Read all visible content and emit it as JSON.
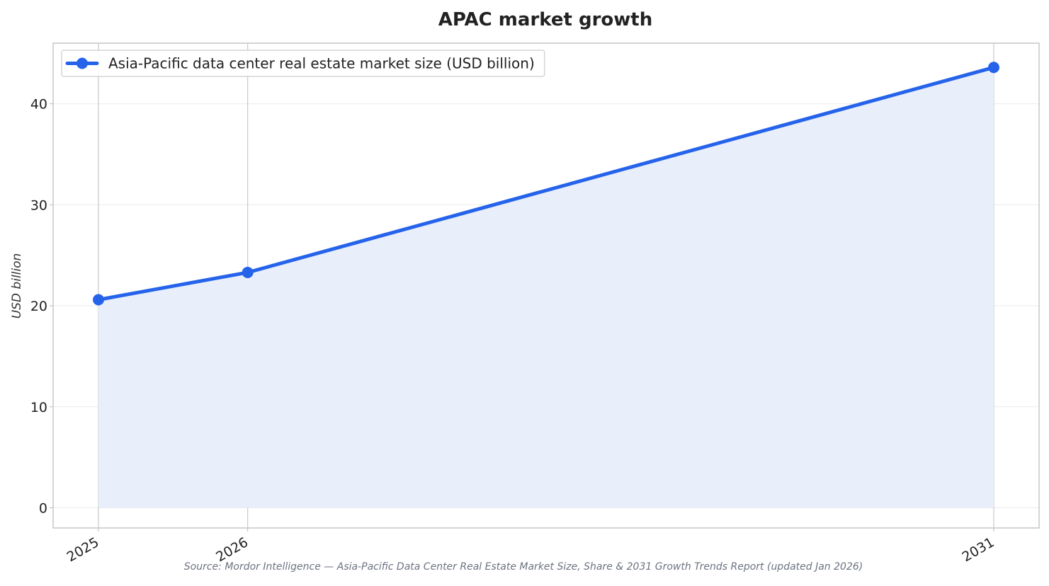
{
  "chart_data": {
    "type": "line",
    "title": "APAC market growth",
    "xlabel": "",
    "ylabel": "USD billion",
    "x": [
      "2025",
      "2026",
      "2031"
    ],
    "x_numeric": [
      2025,
      2026,
      2031
    ],
    "series": [
      {
        "name": "Asia-Pacific data center real estate market size (USD billion)",
        "values": [
          20.6,
          23.3,
          43.6
        ],
        "color": "#2563eb",
        "fill_color": "#e9eefb"
      }
    ],
    "ylim": [
      -2,
      46
    ],
    "yticks": [
      0,
      10,
      20,
      30,
      40
    ],
    "ytick_labels": [
      "0",
      "10",
      "20",
      "30",
      "40"
    ],
    "grid": true,
    "legend_position": "top-left",
    "area_fill": true,
    "source": "Source: Mordor Intelligence — Asia-Pacific Data Center Real Estate Market Size, Share & 2031 Growth Trends Report (updated Jan 2026)"
  }
}
